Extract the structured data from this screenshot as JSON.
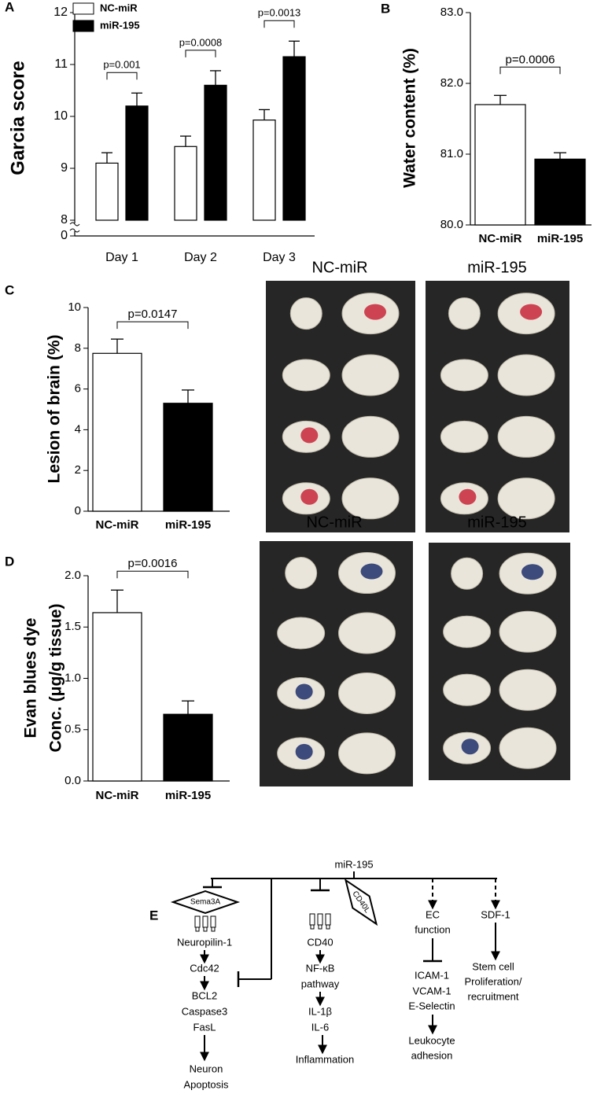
{
  "chart_data": [
    {
      "type": "bar",
      "panel": "A",
      "ylabel": "Garcia score",
      "categories": [
        "Day 1",
        "Day 2",
        "Day 3"
      ],
      "series": [
        {
          "name": "NC-miR",
          "color": "#ffffff",
          "values": [
            9.1,
            9.42,
            9.93
          ],
          "errors": [
            0.2,
            0.2,
            0.2
          ]
        },
        {
          "name": "miR-195",
          "color": "#000000",
          "values": [
            10.2,
            10.6,
            11.15
          ],
          "errors": [
            0.25,
            0.28,
            0.3
          ]
        }
      ],
      "annotations": [
        "p=0.001",
        "p=0.0008",
        "p=0.0013"
      ],
      "ylim": [
        8,
        12
      ],
      "yticks": [
        0,
        8,
        9,
        10,
        11,
        12
      ],
      "axis_break": [
        0,
        8
      ],
      "legend": "upper left"
    },
    {
      "type": "bar",
      "panel": "B",
      "ylabel": "Water content (%)",
      "categories": [
        "NC-miR",
        "miR-195"
      ],
      "values": [
        81.7,
        80.93
      ],
      "errors": [
        0.13,
        0.09
      ],
      "colors": [
        "#ffffff",
        "#000000"
      ],
      "annotations": [
        "p=0.0006"
      ],
      "ylim": [
        80,
        83
      ],
      "yticks": [
        {
          "value": 80,
          "label": "80.0"
        },
        {
          "value": 81,
          "label": "81.0"
        },
        {
          "value": 82,
          "label": "82.0"
        },
        {
          "value": 83,
          "label": "83.0"
        }
      ]
    },
    {
      "type": "bar",
      "panel": "C",
      "ylabel": "Lesion of brain (%)",
      "categories": [
        "NC-miR",
        "miR-195"
      ],
      "values": [
        7.75,
        5.3
      ],
      "errors": [
        0.7,
        0.65
      ],
      "colors": [
        "#ffffff",
        "#000000"
      ],
      "annotations": [
        "p=0.0147"
      ],
      "ylim": [
        0,
        10
      ],
      "yticks": [
        0,
        2,
        4,
        6,
        8,
        10
      ]
    },
    {
      "type": "bar",
      "panel": "D",
      "ylabel": [
        "Evan blues dye",
        "Conc. (μg/g tissue)"
      ],
      "categories": [
        "NC-miR",
        "miR-195"
      ],
      "values": [
        1.64,
        0.65
      ],
      "errors": [
        0.22,
        0.13
      ],
      "colors": [
        "#ffffff",
        "#000000"
      ],
      "annotations": [
        "p=0.0016"
      ],
      "ylim": [
        0,
        2
      ],
      "yticks": [
        {
          "value": 0,
          "label": "0.0"
        },
        0.5,
        {
          "value": 1,
          "label": "1.0"
        },
        1.5,
        {
          "value": 2,
          "label": "2.0"
        }
      ]
    }
  ],
  "photo_labels": {
    "C": [
      "NC-miR",
      "miR-195"
    ],
    "D": [
      "NC-miR",
      "miR-195"
    ]
  },
  "diagram": {
    "panel": "E",
    "source": "miR-195",
    "items": [
      "Sema3A",
      "CD40L",
      "Neuropilin-1",
      "Cdc42",
      "BCL2",
      "Caspase3",
      "FasL",
      "Neuron",
      "Apoptosis",
      "CD40",
      "NF-κB",
      "pathway",
      "IL-1β",
      "IL-6",
      "Inflammation",
      "EC",
      "function",
      "ICAM-1",
      "VCAM-1",
      "E-Selectin",
      "Leukocyte",
      "adhesion",
      "SDF-1",
      "Stem cell",
      "Proliferation/",
      "recruitment"
    ]
  }
}
